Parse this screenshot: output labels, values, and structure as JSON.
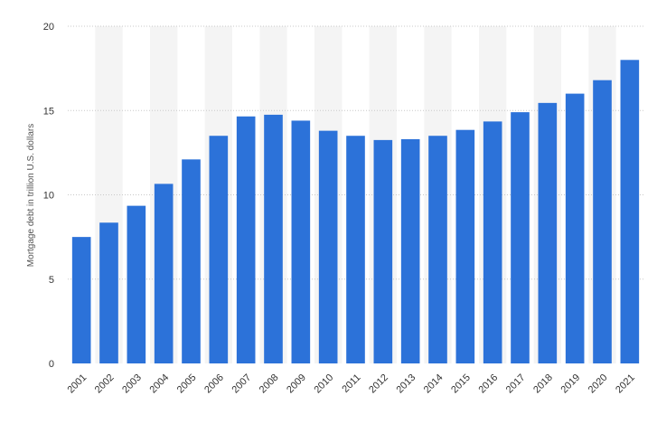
{
  "chart_data": {
    "type": "bar",
    "title": "",
    "xlabel": "",
    "ylabel": "Mortgage debt in trillion U.S. dollars",
    "ylim": [
      0,
      20
    ],
    "yticks": [
      0,
      5,
      10,
      15,
      20
    ],
    "grid": true,
    "legend": "none",
    "bar_color": "#2c72d9",
    "categories": [
      "2001",
      "2002",
      "2003",
      "2004",
      "2005",
      "2006",
      "2007",
      "2008",
      "2009",
      "2010",
      "2011",
      "2012",
      "2013",
      "2014",
      "2015",
      "2016",
      "2017",
      "2018",
      "2019",
      "2020",
      "2021"
    ],
    "series": [
      {
        "values": [
          7.5,
          8.35,
          9.35,
          10.65,
          12.1,
          13.5,
          14.65,
          14.75,
          14.4,
          13.8,
          13.5,
          13.25,
          13.3,
          13.5,
          13.85,
          14.35,
          14.9,
          15.45,
          16.0,
          16.8,
          18.0
        ]
      }
    ]
  }
}
